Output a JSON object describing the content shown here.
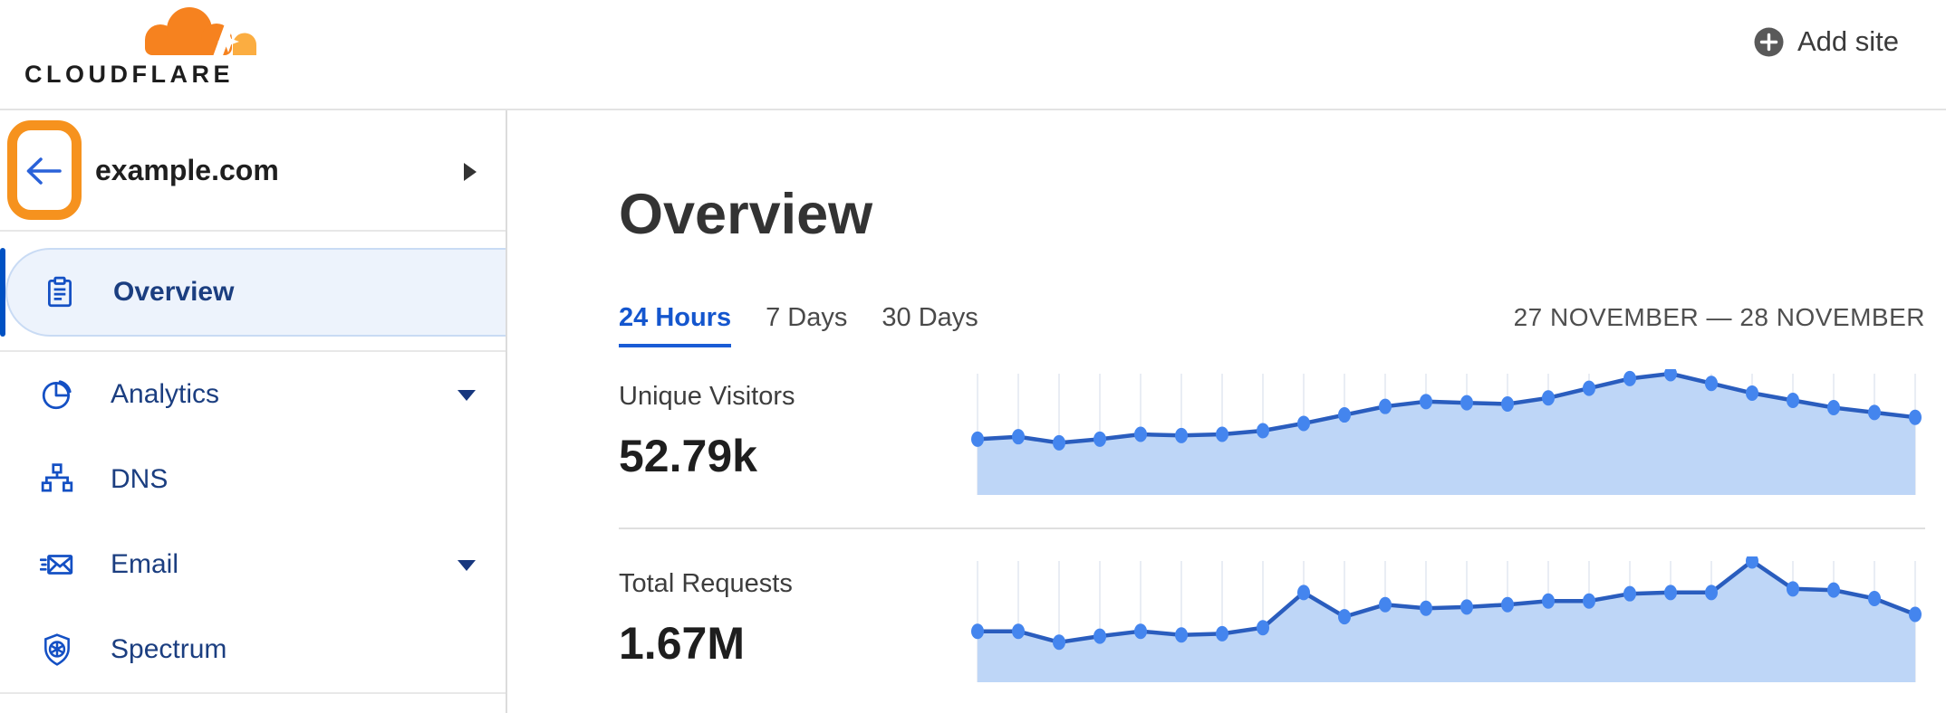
{
  "header": {
    "logo_text": "CLOUDFLARE",
    "add_site_label": "Add site"
  },
  "sidebar": {
    "site_name": "example.com",
    "items": [
      {
        "label": "Overview",
        "icon": "clipboard-icon",
        "selected": true,
        "has_dropdown": false
      },
      {
        "label": "Analytics",
        "icon": "pie-chart-icon",
        "selected": false,
        "has_dropdown": true
      },
      {
        "label": "DNS",
        "icon": "dns-tree-icon",
        "selected": false,
        "has_dropdown": false
      },
      {
        "label": "Email",
        "icon": "email-icon",
        "selected": false,
        "has_dropdown": true
      },
      {
        "label": "Spectrum",
        "icon": "shield-icon",
        "selected": false,
        "has_dropdown": false
      }
    ]
  },
  "main": {
    "title": "Overview",
    "tabs": [
      {
        "label": "24 Hours",
        "active": true
      },
      {
        "label": "7 Days",
        "active": false
      },
      {
        "label": "30 Days",
        "active": false
      }
    ],
    "date_range": "27 NOVEMBER — 28 NOVEMBER",
    "metrics": [
      {
        "label": "Unique Visitors",
        "value": "52.79k"
      },
      {
        "label": "Total Requests",
        "value": "1.67M"
      }
    ]
  },
  "annotation": {
    "purpose": "orange highlight box around back-arrow button",
    "color": "#F6921E"
  },
  "colors": {
    "brand_orange": "#F6821F",
    "brand_orange_light": "#FBAD41",
    "link_blue": "#0051C3",
    "nav_text_blue": "#1B3E80",
    "chart_line": "#2A5DBE",
    "chart_dot": "#4485EE",
    "chart_area": "#BED6F7",
    "chart_grid": "#E9EDF4"
  },
  "chart_data": [
    {
      "type": "area",
      "title": "Unique Visitors",
      "total_shown": "52.79k",
      "x_range_label": "27 NOVEMBER — 28 NOVEMBER",
      "x_unit": "hour (24 Hours view, 24 points)",
      "note": "no y-axis shown; values are relative sparkline heights 0-100",
      "values_relative": [
        46,
        48,
        43,
        46,
        50,
        49,
        50,
        53,
        59,
        66,
        73,
        77,
        76,
        75,
        80,
        88,
        96,
        100,
        92,
        84,
        78,
        72,
        68,
        64
      ],
      "grid": "vertical-only",
      "legend": "none"
    },
    {
      "type": "area",
      "title": "Total Requests",
      "total_shown": "1.67M",
      "x_range_label": "27 NOVEMBER — 28 NOVEMBER",
      "x_unit": "hour (24 Hours view, 24 points)",
      "note": "no y-axis shown; values are relative sparkline heights 0-100",
      "values_relative": [
        42,
        42,
        33,
        38,
        42,
        39,
        40,
        45,
        74,
        54,
        64,
        61,
        62,
        64,
        67,
        67,
        73,
        74,
        74,
        100,
        77,
        76,
        69,
        56
      ],
      "grid": "vertical-only",
      "legend": "none"
    }
  ]
}
